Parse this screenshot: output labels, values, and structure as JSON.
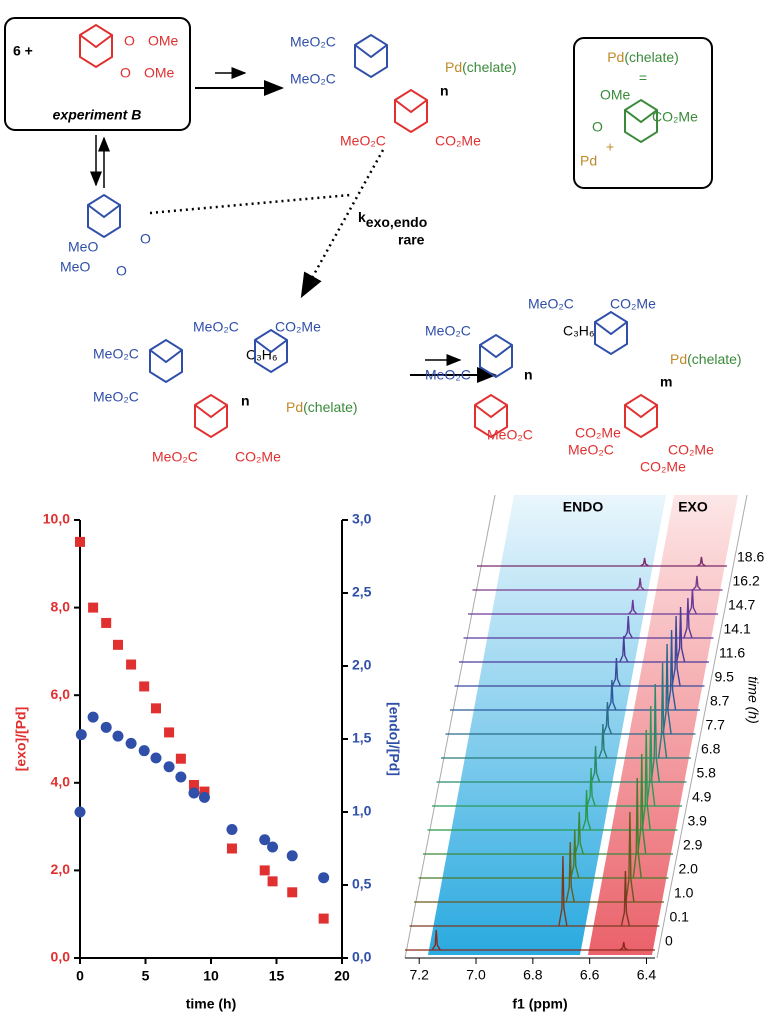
{
  "scheme": {
    "texts": [
      "6 +",
      "O",
      "OMe",
      "O",
      "OMe",
      "experiment B",
      "MeO₂C",
      "MeO₂C",
      "Pd",
      "(chelate)",
      "n",
      "MeO₂C",
      "CO₂Me",
      "Pd",
      "(chelate)",
      "=",
      "OMe",
      "CO₂Me",
      "O",
      "+",
      "Pd",
      "O",
      "MeO",
      "MeO",
      "O",
      "k",
      "exo,endo",
      "rare",
      "MeO₂C",
      "CO₂Me",
      "MeO₂C",
      "C₃H₆",
      "MeO₂C",
      "n",
      "Pd",
      "(chelate)",
      "MeO₂C",
      "CO₂Me",
      "MeO₂C",
      "CO₂Me",
      "MeO₂C",
      "C₃H₆",
      "MeO₂C",
      "n",
      "Pd",
      "(chelate)",
      "m",
      "MeO₂C",
      "CO₂Me",
      "CO₂Me",
      "MeO₂C",
      "CO₂Me"
    ]
  },
  "chart_data": [
    {
      "type": "scatter",
      "xlabel": "time (h)",
      "ylabel": "[exo]/[Pd]",
      "y2label": "[endo]/[Pd]",
      "xlim": [
        0,
        20
      ],
      "xticks": [
        0,
        5,
        10,
        15,
        20
      ],
      "ylim": [
        0,
        10
      ],
      "yticks": [
        {
          "value": 0,
          "label": "0,0"
        },
        {
          "value": 2,
          "label": "2,0"
        },
        {
          "value": 4,
          "label": "4,0"
        },
        {
          "value": 6,
          "label": "6,0"
        },
        {
          "value": 8,
          "label": "8,0"
        },
        {
          "value": 10,
          "label": "10,0"
        }
      ],
      "y2lim": [
        0,
        3
      ],
      "y2ticks": [
        {
          "value": 0,
          "label": "0,0"
        },
        {
          "value": 0.5,
          "label": "0,5"
        },
        {
          "value": 1,
          "label": "1,0"
        },
        {
          "value": 1.5,
          "label": "1,5"
        },
        {
          "value": 2,
          "label": "2,0"
        },
        {
          "value": 2.5,
          "label": "2,5"
        },
        {
          "value": 3,
          "label": "3,0"
        }
      ],
      "ycolor": "#e03030",
      "y2color": "#2f4fa8",
      "series": [
        {
          "color": "#e03030",
          "marker": "square",
          "x": [
            0,
            1.0,
            2.0,
            2.9,
            3.9,
            4.9,
            5.8,
            6.8,
            7.7,
            8.7,
            9.5,
            11.6,
            14.1,
            14.7,
            16.2,
            18.6
          ],
          "values": [
            9.5,
            8.0,
            7.65,
            7.15,
            6.7,
            6.2,
            5.7,
            5.15,
            4.55,
            3.95,
            3.8,
            2.5,
            2.0,
            1.75,
            1.5,
            0.9
          ]
        },
        {
          "color": "#2f4fa8",
          "marker": "circle",
          "axis": "y2",
          "x": [
            0,
            0.1,
            1.0,
            2.0,
            2.9,
            3.9,
            4.9,
            5.8,
            6.8,
            7.7,
            8.7,
            9.5,
            11.6,
            14.1,
            14.7,
            16.2,
            18.6
          ],
          "values": [
            1.0,
            1.53,
            1.65,
            1.58,
            1.52,
            1.47,
            1.42,
            1.37,
            1.31,
            1.24,
            1.13,
            1.1,
            0.88,
            0.81,
            0.76,
            0.7,
            0.55
          ]
        }
      ]
    },
    {
      "type": "waterfall",
      "xlabel": "f1 (ppm)",
      "ylabel": "time (h)",
      "xlim": [
        7.25,
        6.37
      ],
      "xticks": [
        7.2,
        {
          "value": 7,
          "label": "7.0"
        },
        6.8,
        6.6,
        6.4
      ],
      "annotations": [
        "ENDO",
        "EXO"
      ],
      "traces": [
        {
          "name": "0",
          "color": "#8b2a1a",
          "peaks": [
            {
              "ppm": 7.14,
              "height": 20
            },
            {
              "ppm": 6.48,
              "height": 8
            }
          ]
        },
        {
          "name": "0.1",
          "color": "#7a3a20",
          "peaks": [
            {
              "ppm": 6.71,
              "height": 70
            },
            {
              "ppm": 6.49,
              "height": 55
            }
          ]
        },
        {
          "name": "1.0",
          "color": "#6a5a20",
          "peaks": [
            {
              "ppm": 6.7,
              "height": 60
            },
            {
              "ppm": 6.49,
              "height": 90
            }
          ]
        },
        {
          "name": "2.0",
          "color": "#4a7a2a",
          "peaks": [
            {
              "ppm": 6.7,
              "height": 48
            },
            {
              "ppm": 6.48,
              "height": 100
            }
          ]
        },
        {
          "name": "2.9",
          "color": "#3a8a3a",
          "peaks": [
            {
              "ppm": 6.7,
              "height": 42
            },
            {
              "ppm": 6.48,
              "height": 100
            }
          ]
        },
        {
          "name": "3.9",
          "color": "#2a9a4a",
          "peaks": [
            {
              "ppm": 6.69,
              "height": 40
            },
            {
              "ppm": 6.48,
              "height": 100
            }
          ]
        },
        {
          "name": "4.9",
          "color": "#2a9a5a",
          "peaks": [
            {
              "ppm": 6.69,
              "height": 38
            },
            {
              "ppm": 6.48,
              "height": 100
            }
          ]
        },
        {
          "name": "5.8",
          "color": "#2a8a6a",
          "peaks": [
            {
              "ppm": 6.69,
              "height": 36
            },
            {
              "ppm": 6.48,
              "height": 98
            }
          ]
        },
        {
          "name": "6.8",
          "color": "#2a7a7a",
          "peaks": [
            {
              "ppm": 6.68,
              "height": 34
            },
            {
              "ppm": 6.47,
              "height": 95
            }
          ]
        },
        {
          "name": "7.7",
          "color": "#2a6a8a",
          "peaks": [
            {
              "ppm": 6.68,
              "height": 32
            },
            {
              "ppm": 6.47,
              "height": 90
            }
          ]
        },
        {
          "name": "8.7",
          "color": "#2a5a9a",
          "peaks": [
            {
              "ppm": 6.68,
              "height": 30
            },
            {
              "ppm": 6.47,
              "height": 80
            }
          ]
        },
        {
          "name": "9.5",
          "color": "#3a4a9a",
          "peaks": [
            {
              "ppm": 6.68,
              "height": 28
            },
            {
              "ppm": 6.47,
              "height": 70
            }
          ]
        },
        {
          "name": "11.6",
          "color": "#4a3a9a",
          "peaks": [
            {
              "ppm": 6.67,
              "height": 26
            },
            {
              "ppm": 6.47,
              "height": 55
            }
          ]
        },
        {
          "name": "14.1",
          "color": "#5a3a9a",
          "peaks": [
            {
              "ppm": 6.67,
              "height": 22
            },
            {
              "ppm": 6.46,
              "height": 40
            }
          ]
        },
        {
          "name": "14.7",
          "color": "#6a3a9a",
          "peaks": [
            {
              "ppm": 6.67,
              "height": 14
            },
            {
              "ppm": 6.46,
              "height": 25
            }
          ]
        },
        {
          "name": "16.2",
          "color": "#7a3a8a",
          "peaks": [
            {
              "ppm": 6.66,
              "height": 12
            },
            {
              "ppm": 6.46,
              "height": 14
            }
          ]
        },
        {
          "name": "18.6",
          "color": "#7a2a6a",
          "peaks": [
            {
              "ppm": 6.66,
              "height": 8
            },
            {
              "ppm": 6.46,
              "height": 9
            }
          ]
        }
      ]
    }
  ]
}
